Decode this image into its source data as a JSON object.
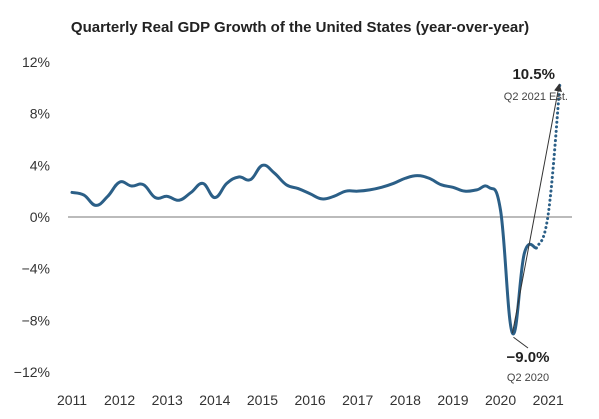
{
  "chart_data": {
    "type": "line",
    "title": "Quarterly Real GDP Growth of the United States (year-over-year)",
    "xlabel": "",
    "ylabel": "",
    "ylim": [
      -12,
      12
    ],
    "xlim": [
      2011,
      2021.5
    ],
    "grid": false,
    "yticks": [
      12,
      8,
      4,
      0,
      -4,
      -8,
      -12
    ],
    "ytick_labels": [
      "12%",
      "8%",
      "4%",
      "0%",
      "−4%",
      "−8%",
      "−12%"
    ],
    "xticks": [
      2011,
      2012,
      2013,
      2014,
      2015,
      2016,
      2017,
      2018,
      2019,
      2020,
      2021
    ],
    "xtick_labels": [
      "2011",
      "2012",
      "2013",
      "2014",
      "2015",
      "2016",
      "2017",
      "2018",
      "2019",
      "2020",
      "2021"
    ],
    "colors": {
      "series": "#2b5f87",
      "baseline": "#777777",
      "arrow": "#333333"
    },
    "series": [
      {
        "style": "solid",
        "x": [
          2011.0,
          2011.25,
          2011.5,
          2011.75,
          2012.0,
          2012.25,
          2012.5,
          2012.75,
          2013.0,
          2013.25,
          2013.5,
          2013.75,
          2014.0,
          2014.25,
          2014.5,
          2014.75,
          2015.0,
          2015.25,
          2015.5,
          2015.75,
          2016.0,
          2016.25,
          2016.5,
          2016.75,
          2017.0,
          2017.25,
          2017.5,
          2017.75,
          2018.0,
          2018.25,
          2018.5,
          2018.75,
          2019.0,
          2019.25,
          2019.5,
          2019.75,
          2020.0,
          2020.25,
          2020.5,
          2020.75
        ],
        "y": [
          1.9,
          1.7,
          0.9,
          1.6,
          2.7,
          2.4,
          2.5,
          1.5,
          1.6,
          1.3,
          1.9,
          2.6,
          1.5,
          2.6,
          3.1,
          2.9,
          4.0,
          3.4,
          2.5,
          2.2,
          1.8,
          1.4,
          1.6,
          2.0,
          2.0,
          2.1,
          2.3,
          2.6,
          3.0,
          3.2,
          3.0,
          2.5,
          2.3,
          2.0,
          2.1,
          2.3,
          0.5,
          -9.0,
          -2.8,
          -2.4
        ]
      },
      {
        "style": "dotted",
        "x": [
          2020.75,
          2021.0,
          2021.25
        ],
        "y": [
          -2.4,
          0.2,
          10.5
        ]
      }
    ],
    "annotations": [
      {
        "value": "10.5%",
        "label": "Q2 2021 Est."
      },
      {
        "value": "−9.0%",
        "label": "Q2 2020"
      }
    ]
  }
}
